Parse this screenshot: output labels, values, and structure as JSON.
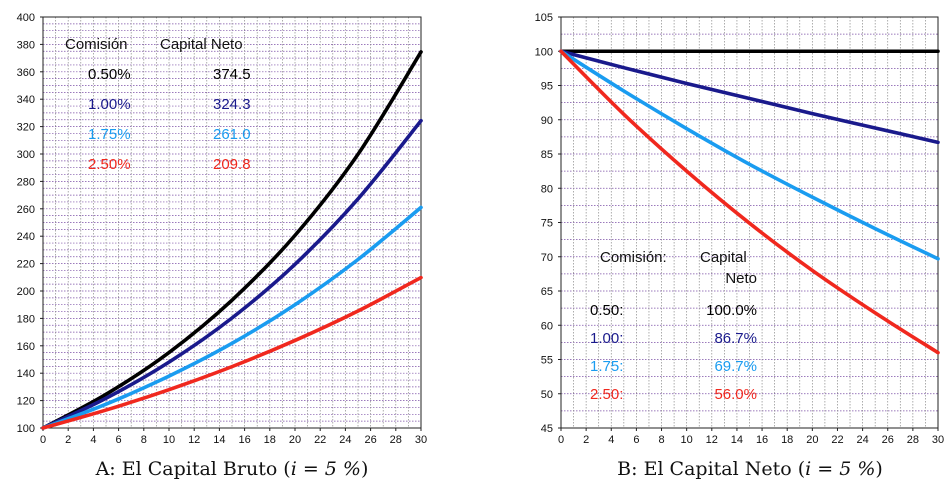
{
  "colors": {
    "c050": "#000000",
    "c100": "#1a1a8c",
    "c175": "#1a9cf0",
    "c250": "#f0281e",
    "grid": "#8a8a8a",
    "grid_minor": "#7b4fa6"
  },
  "chart_data": [
    {
      "type": "line",
      "caption_prefix": "A: El Capital Bruto (",
      "caption_math": "i = 5 %",
      "caption_suffix": ")",
      "xlim": [
        0,
        30
      ],
      "ylim": [
        100,
        400
      ],
      "xticks": [
        0,
        2,
        4,
        6,
        8,
        10,
        12,
        14,
        16,
        18,
        20,
        22,
        24,
        26,
        28,
        30
      ],
      "yticks": [
        100,
        120,
        140,
        160,
        180,
        200,
        220,
        240,
        260,
        280,
        300,
        320,
        340,
        360,
        380,
        400
      ],
      "grid": true,
      "annotation_header": [
        "Comisión",
        "Capital Neto"
      ],
      "annotation_rows": [
        [
          "0.50%",
          "374.5"
        ],
        [
          "1.00%",
          "324.3"
        ],
        [
          "1.75%",
          "261.0"
        ],
        [
          "2.50%",
          "209.8"
        ]
      ],
      "series": [
        {
          "color": "#000000",
          "x": [
            0,
            5,
            10,
            15,
            20,
            25,
            30
          ],
          "y": [
            100,
            124.6,
            155.1,
            193.3,
            240.6,
            299.8,
            374.5
          ]
        },
        {
          "color": "#1a1a8c",
          "x": [
            0,
            5,
            10,
            15,
            20,
            25,
            30
          ],
          "y": [
            100,
            121.7,
            148.1,
            180.3,
            219.5,
            267.2,
            324.3
          ]
        },
        {
          "color": "#1a9cf0",
          "x": [
            0,
            5,
            10,
            15,
            20,
            25,
            30
          ],
          "y": [
            100,
            117.4,
            137.9,
            161.8,
            190.0,
            223.0,
            261.0
          ]
        },
        {
          "color": "#f0281e",
          "x": [
            0,
            5,
            10,
            15,
            20,
            25,
            30
          ],
          "y": [
            100,
            113.1,
            128.0,
            144.8,
            163.9,
            185.4,
            209.8
          ]
        }
      ]
    },
    {
      "type": "line",
      "caption_prefix": "B: El Capital Neto (",
      "caption_math": "i = 5 %",
      "caption_suffix": ")",
      "xlim": [
        0,
        30
      ],
      "ylim": [
        45,
        105
      ],
      "xticks": [
        0,
        2,
        4,
        6,
        8,
        10,
        12,
        14,
        16,
        18,
        20,
        22,
        24,
        26,
        28,
        30
      ],
      "yticks": [
        45,
        50,
        55,
        60,
        65,
        70,
        75,
        80,
        85,
        90,
        95,
        100,
        105
      ],
      "grid": true,
      "annotation_header": [
        "Comisión:",
        "Capital",
        "Neto"
      ],
      "annotation_rows": [
        [
          "0.50:",
          "100.0%"
        ],
        [
          "1.00:",
          "86.7%"
        ],
        [
          "1.75:",
          "69.7%"
        ],
        [
          "2.50:",
          "56.0%"
        ]
      ],
      "series": [
        {
          "color": "#000000",
          "x": [
            0,
            30
          ],
          "y": [
            100,
            100
          ]
        },
        {
          "color": "#1a1a8c",
          "x": [
            0,
            5,
            10,
            15,
            20,
            25,
            30
          ],
          "y": [
            100,
            97.6,
            95.3,
            93.1,
            90.9,
            88.8,
            86.7
          ]
        },
        {
          "color": "#1a9cf0",
          "x": [
            0,
            5,
            10,
            15,
            20,
            25,
            30
          ],
          "y": [
            100,
            94.2,
            88.7,
            83.5,
            78.7,
            74.1,
            69.7
          ]
        },
        {
          "color": "#f0281e",
          "x": [
            0,
            5,
            10,
            15,
            20,
            25,
            30
          ],
          "y": [
            100,
            90.8,
            82.5,
            74.9,
            68.0,
            61.8,
            56.0
          ]
        }
      ]
    }
  ]
}
